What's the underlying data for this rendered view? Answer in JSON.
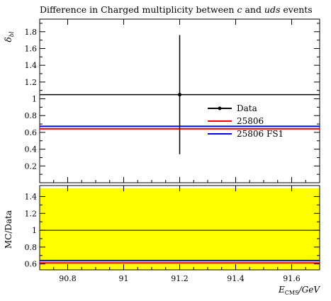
{
  "chart_data": [
    {
      "type": "line",
      "title_parts": [
        "Difference in Charged multiplicity between ",
        "c",
        " and ",
        "uds",
        " events"
      ],
      "ylabel_main": "δ",
      "ylabel_sub": "bl",
      "ylim": [
        0.0,
        1.95
      ],
      "yticks": [
        0.2,
        0.4,
        0.6,
        0.8,
        1.0,
        1.2,
        1.4,
        1.6,
        1.8
      ],
      "ytick_labels": [
        "0.2",
        "0.4",
        "0.6",
        "0.8",
        "1",
        "1.2",
        "1.4",
        "1.6",
        "1.8"
      ],
      "xlim": [
        90.7,
        91.7
      ],
      "data_point": {
        "x": 91.2,
        "y": 1.05,
        "yerr": 0.71,
        "xmin": 90.7,
        "xmax": 91.7
      },
      "series": [
        {
          "name": "Data",
          "color": "#000000",
          "type": "errorbar",
          "value": 1.05
        },
        {
          "name": "25806",
          "color": "#ff0000",
          "type": "hline",
          "value": 0.643
        },
        {
          "name": "25806 FS1",
          "color": "#0000ff",
          "type": "hline",
          "value": 0.672
        }
      ],
      "legend_position": "right",
      "grid": false
    },
    {
      "type": "line",
      "ylabel": "MC/Data",
      "ylim": [
        0.53,
        1.53
      ],
      "yticks": [
        0.6,
        0.8,
        1.0,
        1.2,
        1.4
      ],
      "ytick_labels": [
        "0.6",
        "0.8",
        "1",
        "1.2",
        "1.4"
      ],
      "xlim": [
        90.7,
        91.7
      ],
      "xticks": [
        90.8,
        91.0,
        91.2,
        91.4,
        91.6
      ],
      "xtick_labels": [
        "90.8",
        "91",
        "91.2",
        "91.4",
        "91.6"
      ],
      "xlabel_main": "E",
      "xlabel_sub": "CMS",
      "xlabel_unit": "/GeV",
      "band": {
        "ymin": 0.33,
        "ymax": 1.5,
        "color": "#ffff00"
      },
      "reference_line": 1.0,
      "series": [
        {
          "name": "25806",
          "color": "#ff0000",
          "values": [
            0.612
          ]
        },
        {
          "name": "25806 FS1",
          "color": "#0000ff",
          "values": [
            0.64
          ]
        }
      ],
      "grid": false
    }
  ]
}
